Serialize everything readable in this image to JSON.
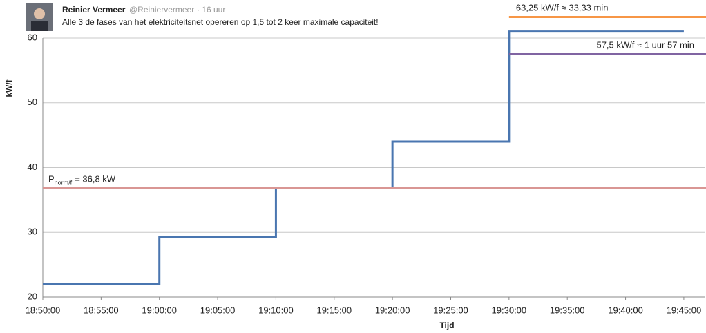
{
  "tweet": {
    "name": "Reinier Vermeer",
    "handle": "@Reiniervermeer",
    "time": "· 16 uur",
    "text": "Alle 3 de fases van het elektriciteitsnet opereren op 1,5 tot 2 keer maximale capaciteit!"
  },
  "chart_data": {
    "type": "line",
    "x_label": "Tijd",
    "y_label": "kW/f",
    "x": [
      "18:50:00",
      "19:00:00",
      "19:00:00",
      "19:10:00",
      "19:10:00",
      "19:20:00",
      "19:20:00",
      "19:30:00",
      "19:30:00",
      "19:45:00"
    ],
    "values": [
      22,
      22,
      29.3,
      29.3,
      36.8,
      36.8,
      44,
      44,
      61,
      61
    ],
    "color": "#4a76b0",
    "xlim": [
      "18:50:00",
      "19:46:47"
    ],
    "xticks": [
      "18:50:00",
      "18:55:00",
      "19:00:00",
      "19:05:00",
      "19:10:00",
      "19:15:00",
      "19:20:00",
      "19:25:00",
      "19:30:00",
      "19:35:00",
      "19:40:00",
      "19:45:00"
    ],
    "ylim": [
      20,
      60
    ],
    "yticks": [
      20,
      30,
      40,
      50,
      60
    ],
    "grid": true,
    "reference_lines": [
      {
        "value": 36.8,
        "color": "#d99694",
        "label": [
          "P",
          "norm/f",
          "= 36,8 kW"
        ]
      },
      {
        "value": 63.25,
        "color": "#f79646",
        "from": "19:30:00",
        "label": [
          "63,25 kW/f ≈ 33,33 min"
        ]
      },
      {
        "value": 57.5,
        "color": "#8064a2",
        "from": "19:30:00",
        "label": [
          "57,5 kW/f ≈ 1 uur 57 min"
        ]
      }
    ]
  }
}
